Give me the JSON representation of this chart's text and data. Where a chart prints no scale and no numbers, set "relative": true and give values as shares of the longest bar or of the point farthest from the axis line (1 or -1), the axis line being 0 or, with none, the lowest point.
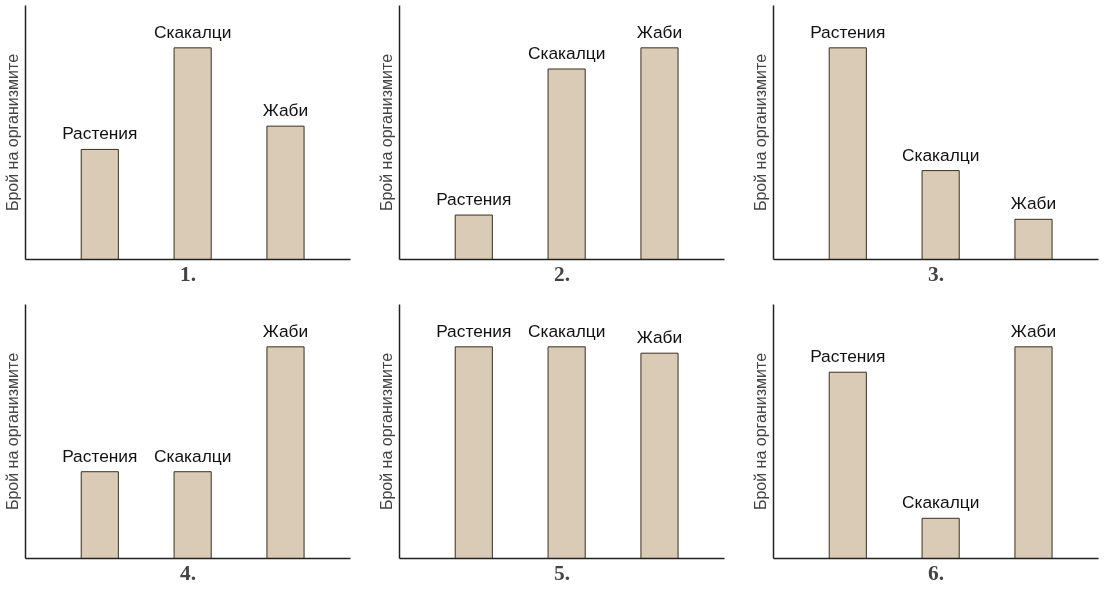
{
  "chart_data": [
    {
      "type": "bar",
      "title": "1.",
      "ylabel": "Брой на организмите",
      "categories": [
        "Растения",
        "Скакалци",
        "Жаби"
      ],
      "values": [
        0.52,
        1,
        0.63
      ],
      "color": "#d9cbb5",
      "relative": true
    },
    {
      "type": "bar",
      "title": "2.",
      "ylabel": "Брой на организмите",
      "categories": [
        "Растения",
        "Скакалци",
        "Жаби"
      ],
      "values": [
        0.21,
        0.9,
        1
      ],
      "color": "#d9cbb5",
      "relative": true
    },
    {
      "type": "bar",
      "title": "3.",
      "ylabel": "Брой на организмите",
      "categories": [
        "Растения",
        "Скакалци",
        "Жаби"
      ],
      "values": [
        1,
        0.42,
        0.19
      ],
      "color": "#d9cbb5",
      "relative": true
    },
    {
      "type": "bar",
      "title": "4.",
      "ylabel": "Брой на организмите",
      "categories": [
        "Растения",
        "Скакалци",
        "Жаби"
      ],
      "values": [
        0.41,
        0.41,
        1
      ],
      "color": "#d9cbb5",
      "relative": true
    },
    {
      "type": "bar",
      "title": "5.",
      "ylabel": "Брой на организмите",
      "categories": [
        "Растения",
        "Скакалци",
        "Жаби"
      ],
      "values": [
        1,
        1,
        0.97
      ],
      "color": "#d9cbb5",
      "relative": true
    },
    {
      "type": "bar",
      "title": "6.",
      "ylabel": "Брой на организмите",
      "categories": [
        "Растения",
        "Скакалци",
        "Жаби"
      ],
      "values": [
        0.88,
        0.19,
        1
      ],
      "color": "#d9cbb5",
      "relative": true
    }
  ]
}
